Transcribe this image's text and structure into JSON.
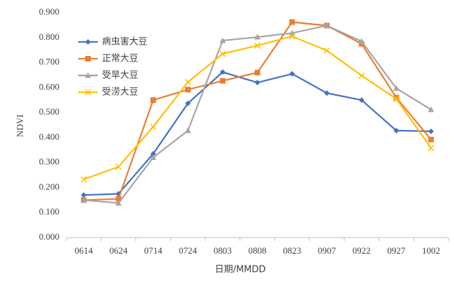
{
  "chart_data": {
    "type": "line",
    "xlabel": "日期/MMDD",
    "ylabel": "NDVI",
    "categories": [
      "0614",
      "0624",
      "0714",
      "0724",
      "0803",
      "0808",
      "0823",
      "0907",
      "0922",
      "0927",
      "1002"
    ],
    "series": [
      {
        "name": "病虫害大豆",
        "color": "#4472c4",
        "marker": "diamond",
        "values": [
          0.17,
          0.175,
          0.335,
          0.537,
          0.662,
          0.62,
          0.655,
          0.578,
          0.55,
          0.428,
          0.425
        ]
      },
      {
        "name": "正常大豆",
        "color": "#ed7d31",
        "marker": "square",
        "values": [
          0.15,
          0.155,
          0.55,
          0.592,
          0.627,
          0.66,
          0.862,
          0.848,
          0.775,
          0.56,
          0.392
        ]
      },
      {
        "name": "受旱大豆",
        "color": "#a5a5a5",
        "marker": "triangle",
        "values": [
          0.15,
          0.138,
          0.32,
          0.428,
          0.788,
          0.802,
          0.818,
          0.848,
          0.785,
          0.597,
          0.512
        ]
      },
      {
        "name": "受涝大豆",
        "color": "#ffc000",
        "marker": "x",
        "values": [
          0.233,
          0.283,
          0.443,
          0.622,
          0.735,
          0.768,
          0.805,
          0.748,
          0.648,
          0.555,
          0.358
        ]
      }
    ],
    "ylim": [
      0,
      0.9
    ],
    "yticks": [
      {
        "value": 0,
        "label": "0.000"
      },
      {
        "value": 0.1,
        "label": "0.100"
      },
      {
        "value": 0.2,
        "label": "0.200"
      },
      {
        "value": 0.3,
        "label": "0.300"
      },
      {
        "value": 0.4,
        "label": "0.400"
      },
      {
        "value": 0.5,
        "label": "0.500"
      },
      {
        "value": 0.6,
        "label": "0.600"
      },
      {
        "value": 0.7,
        "label": "0.700"
      },
      {
        "value": 0.8,
        "label": "0.800"
      },
      {
        "value": 0.9,
        "label": "0.900"
      }
    ],
    "grid": false,
    "legend": "upper left"
  }
}
